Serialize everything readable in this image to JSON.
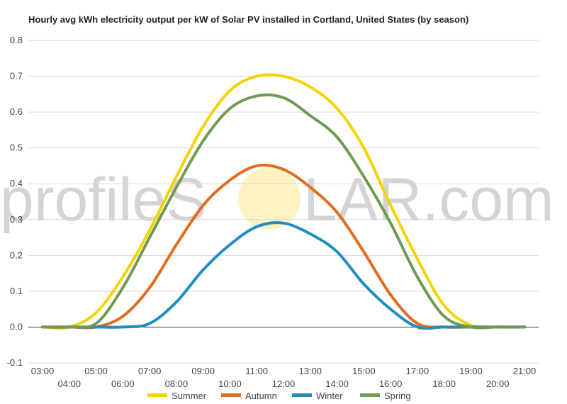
{
  "chart_data": {
    "type": "line",
    "title": "Hourly avg kWh electricity output per kW of Solar PV installed in Cortland, United States (by season)",
    "xlabel": "",
    "ylabel": "",
    "ylim": [
      -0.1,
      0.8
    ],
    "yticks": [
      "-0.1",
      "0.0",
      "0.1",
      "0.2",
      "0.3",
      "0.4",
      "0.5",
      "0.6",
      "0.7",
      "0.8"
    ],
    "x": [
      "03:00",
      "04:00",
      "05:00",
      "06:00",
      "07:00",
      "08:00",
      "09:00",
      "10:00",
      "11:00",
      "12:00",
      "13:00",
      "14:00",
      "15:00",
      "16:00",
      "17:00",
      "18:00",
      "19:00",
      "20:00",
      "21:00"
    ],
    "grid": true,
    "legend_position": "bottom",
    "series": [
      {
        "name": "Summer",
        "color": "#f5d300",
        "values": [
          0.0,
          0.0,
          0.04,
          0.14,
          0.27,
          0.42,
          0.56,
          0.66,
          0.7,
          0.7,
          0.67,
          0.61,
          0.5,
          0.34,
          0.19,
          0.06,
          0.005,
          0.0,
          0.0
        ]
      },
      {
        "name": "Autumn",
        "color": "#e06d1e",
        "values": [
          0.0,
          0.0,
          0.0,
          0.03,
          0.11,
          0.23,
          0.34,
          0.41,
          0.45,
          0.44,
          0.39,
          0.32,
          0.21,
          0.09,
          0.01,
          0.0,
          0.0,
          0.0,
          0.0
        ]
      },
      {
        "name": "Winter",
        "color": "#1f8ebf",
        "values": [
          0.0,
          0.0,
          0.0,
          0.0,
          0.01,
          0.07,
          0.16,
          0.23,
          0.28,
          0.29,
          0.26,
          0.21,
          0.12,
          0.05,
          0.0,
          0.0,
          0.0,
          0.0,
          0.0
        ]
      },
      {
        "name": "Spring",
        "color": "#6f9a4f",
        "values": [
          0.0,
          0.0,
          0.01,
          0.11,
          0.25,
          0.39,
          0.52,
          0.61,
          0.645,
          0.64,
          0.59,
          0.53,
          0.42,
          0.29,
          0.14,
          0.03,
          0.0,
          0.0,
          0.0
        ]
      }
    ]
  },
  "watermark": {
    "text_left": "profileS",
    "text_right": "LAR.com"
  }
}
